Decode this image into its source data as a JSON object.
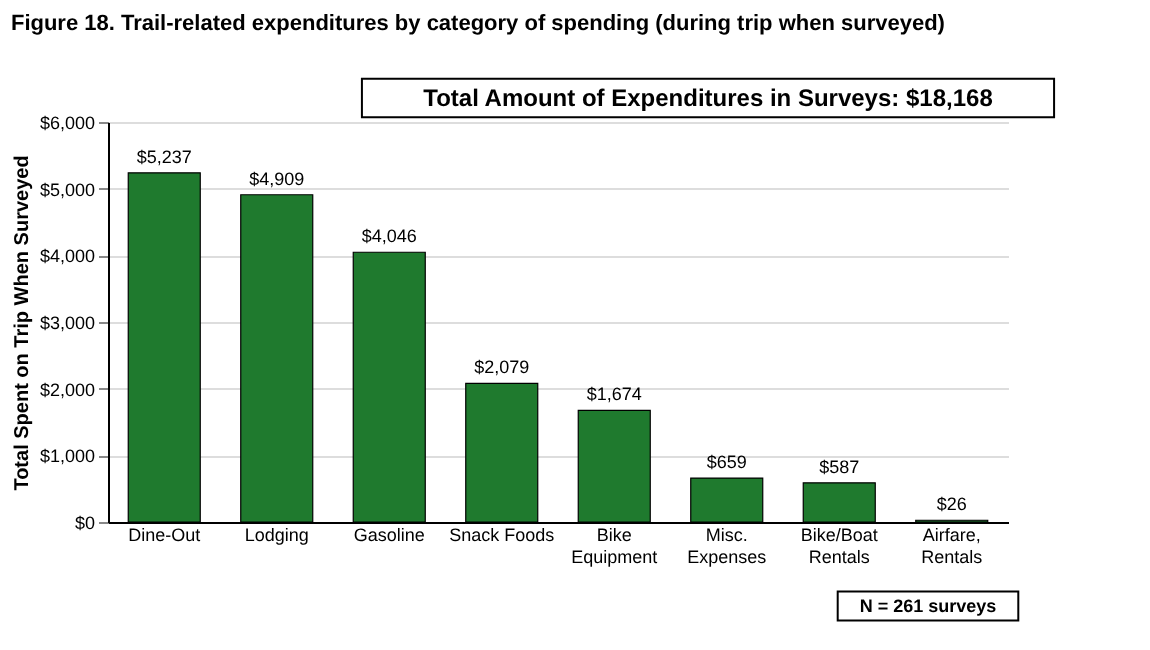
{
  "chart_data": {
    "type": "bar",
    "title": "Figure 18.  Trail-related expenditures by category of spending (during trip when surveyed)",
    "ylabel": "Total Spent on Trip When Surveyed",
    "categories": [
      "Dine-Out",
      "Lodging",
      "Gasoline",
      "Snack Foods",
      "Bike\nEquipment",
      "Misc.\nExpenses",
      "Bike/Boat\nRentals",
      "Airfare,\nRentals"
    ],
    "values": [
      5237,
      4909,
      4046,
      2079,
      1674,
      659,
      587,
      26
    ],
    "value_labels": [
      "$5,237",
      "$4,909",
      "$4,046",
      "$2,079",
      "$1,674",
      "$659",
      "$587",
      "$26"
    ],
    "color": "#1f7a2e",
    "ylim": [
      0,
      6000
    ],
    "yticks": [
      {
        "value": 0,
        "label": "$0"
      },
      {
        "value": 1000,
        "label": "$1,000"
      },
      {
        "value": 2000,
        "label": "$2,000"
      },
      {
        "value": 3000,
        "label": "$3,000"
      },
      {
        "value": 4000,
        "label": "$4,000"
      },
      {
        "value": 5000,
        "label": "$5,000"
      },
      {
        "value": 6000,
        "label": "$6,000"
      }
    ],
    "grid": "y",
    "annotations": [
      "Total Amount of Expenditures in Surveys: $18,168",
      "N = 261 surveys"
    ]
  }
}
